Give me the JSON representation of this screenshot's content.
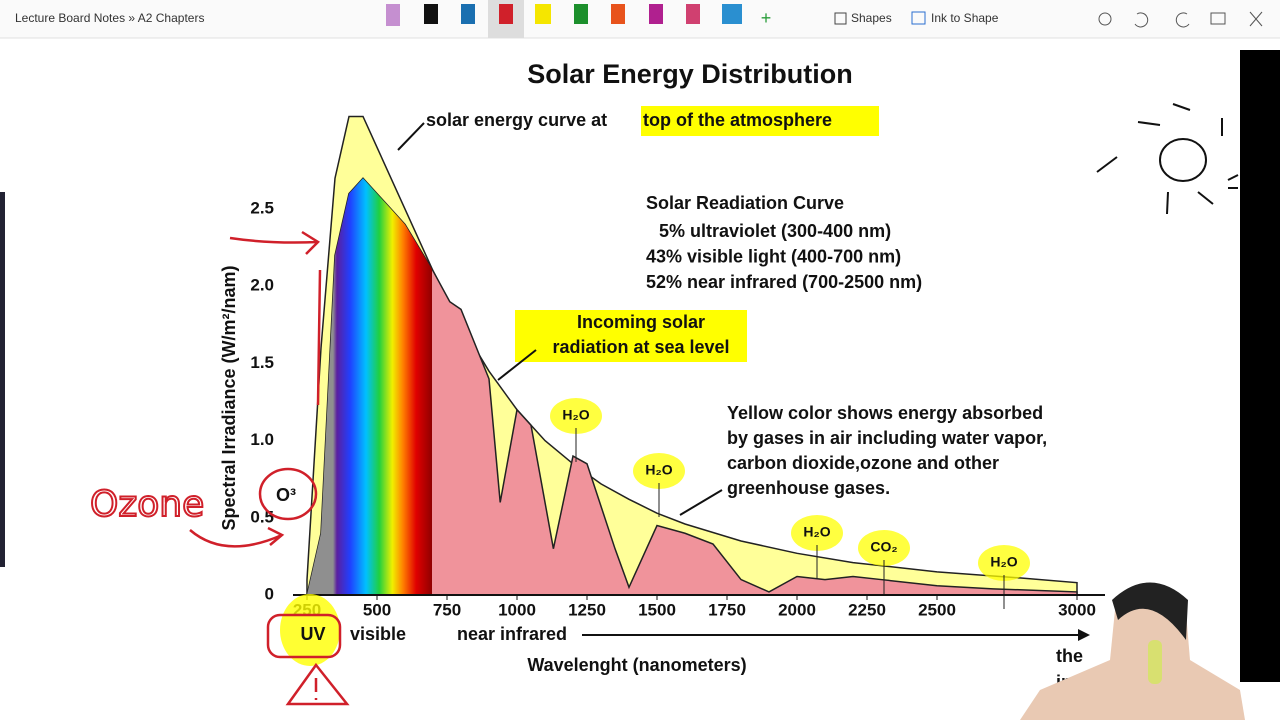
{
  "toolbar": {
    "breadcrumb": "Lecture Board Notes » A2 Chapters",
    "shapes": "Shapes",
    "ink_to_shape": "Ink to Shape"
  },
  "chart_data": {
    "type": "area",
    "title": "Solar Energy Distribution",
    "xlabel": "Wavelenght (nanometers)",
    "ylabel": "Spectral Irradiance (W/m²/nam)",
    "xlim": [
      200,
      3100
    ],
    "ylim": [
      0,
      3.2
    ],
    "xticks": [
      250,
      500,
      750,
      1000,
      1250,
      1500,
      1750,
      2000,
      2250,
      2500,
      3000
    ],
    "yticks": [
      0,
      0.5,
      {
        "value": 1,
        "label": "1.0"
      },
      1.5,
      {
        "value": 2,
        "label": "2.0"
      },
      2.5
    ],
    "series": [
      {
        "name": "top of the atmosphere",
        "color": "#ffff99",
        "x": [
          250,
          300,
          350,
          400,
          450,
          500,
          600,
          700,
          800,
          900,
          1000,
          1100,
          1200,
          1300,
          1400,
          1500,
          1600,
          1800,
          2000,
          2200,
          2500,
          2800,
          3000
        ],
        "values": [
          0.1,
          1.6,
          2.7,
          3.1,
          3.1,
          2.9,
          2.5,
          2.1,
          1.75,
          1.45,
          1.2,
          1.0,
          0.85,
          0.72,
          0.62,
          0.53,
          0.46,
          0.35,
          0.27,
          0.21,
          0.15,
          0.11,
          0.08
        ]
      },
      {
        "color": "#f0939b",
        "x": [
          250,
          300,
          350,
          400,
          450,
          500,
          600,
          700,
          760,
          800,
          900,
          940,
          1000,
          1050,
          1130,
          1200,
          1250,
          1350,
          1400,
          1500,
          1600,
          1700,
          1800,
          1900,
          2000,
          2100,
          2200,
          2300,
          2500,
          2700,
          3000
        ],
        "values": [
          0,
          0.4,
          2.2,
          2.6,
          2.7,
          2.6,
          2.4,
          2.1,
          1.9,
          1.85,
          1.4,
          0.6,
          1.2,
          1.1,
          0.3,
          0.9,
          0.85,
          0.3,
          0.05,
          0.45,
          0.4,
          0.33,
          0.1,
          0.02,
          0.12,
          0.1,
          0.12,
          0.1,
          0.06,
          0.04,
          0.02
        ]
      }
    ],
    "annotations": {
      "curve_label": "solar energy curve at",
      "sea_level": [
        "Incoming solar",
        "radiation at sea level"
      ],
      "box_title": "Solar Readiation Curve",
      "box_lines": [
        "5% ultraviolet (300-400 nm)",
        "43% visible light (400-700 nm)",
        "52% near infrared (700-2500 nm)"
      ],
      "yellow_note": [
        "Yellow color shows energy absorbed",
        "by gases in air including water vapor,",
        "carbon dioxide,ozone and other",
        "greenhouse gases."
      ],
      "gases": [
        "H₂O",
        "H₂O",
        "H₂O",
        "CO₂",
        "H₂O"
      ],
      "bands": [
        "UV",
        "visible",
        "near infrared",
        "the",
        "in"
      ]
    },
    "ink": [
      "Ozone",
      "O³"
    ]
  }
}
